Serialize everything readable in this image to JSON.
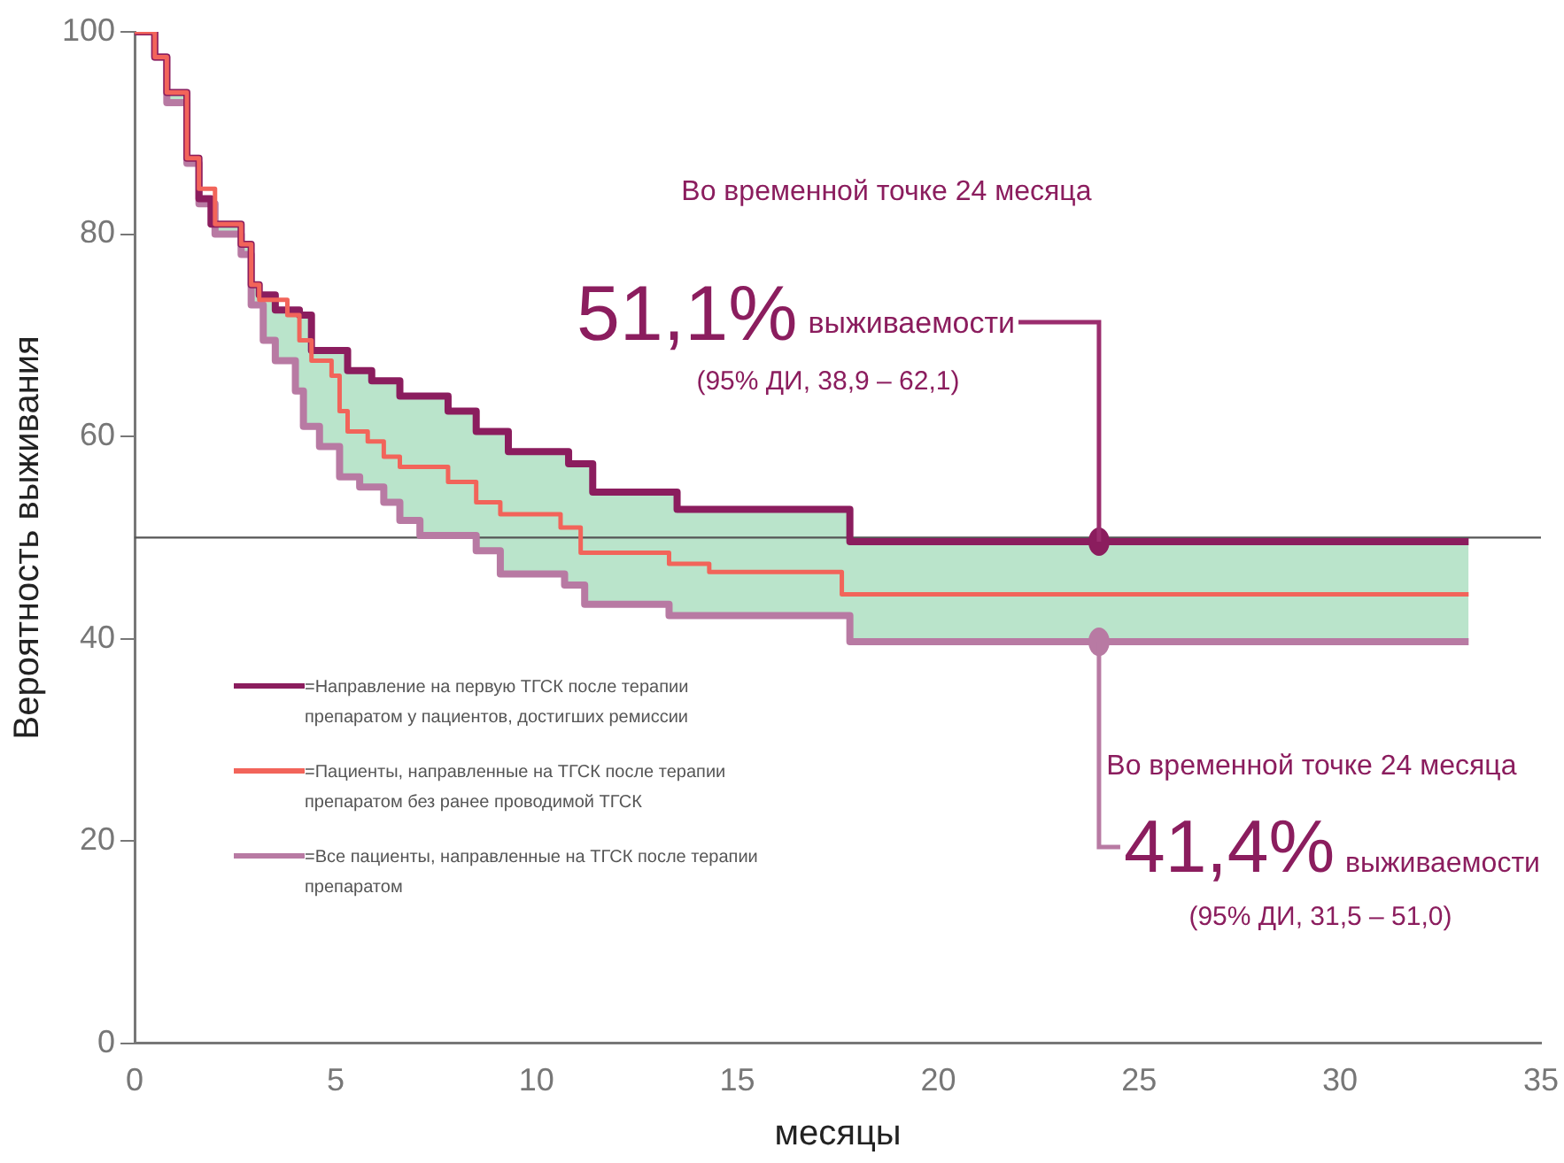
{
  "chart_data": {
    "type": "step",
    "xlabel": "месяцы",
    "ylabel": "Вероятность выживания",
    "xlim": [
      0,
      35
    ],
    "xticks": [
      0,
      5,
      10,
      15,
      20,
      25,
      30,
      35
    ],
    "ylim": [
      0,
      100
    ],
    "yticks": [
      0,
      20,
      40,
      60,
      80,
      100
    ],
    "grid": false,
    "legend": "bottom left",
    "ref_lines": [
      {
        "axis": "y",
        "value": 50,
        "color": "#555555"
      }
    ],
    "series": [
      {
        "name": "=Направление на первую ТГСК после терапии препаратом у пациентов, достигших ремиссии",
        "color": "#8b1d5e",
        "x": [
          0,
          0.5,
          0.8,
          1.3,
          1.6,
          1.9,
          2.65,
          2.9,
          3.1,
          3.5,
          4.1,
          4.4,
          5.3,
          5.9,
          6.6,
          7.8,
          8.5,
          9.3,
          10.8,
          11.4,
          13.5,
          17.8,
          33.2
        ],
        "values": [
          100,
          97.5,
          94,
          87.5,
          83.5,
          81,
          79,
          75,
          74,
          72.5,
          72,
          68.5,
          66.5,
          65.5,
          64,
          62.5,
          60.5,
          58.5,
          57.3,
          54.5,
          52.8,
          49.6,
          49.6
        ]
      },
      {
        "name": "=Пациенты, направленные на ТГСК после терапии препаратом без ранее проводимой ТГСК",
        "color": "#f2645a",
        "x": [
          0,
          0.5,
          0.8,
          1.3,
          1.6,
          2.0,
          2.65,
          2.9,
          3.1,
          3.8,
          4.1,
          4.4,
          4.9,
          5.1,
          5.3,
          5.8,
          6.2,
          6.6,
          7.8,
          8.5,
          9.1,
          10.6,
          11.1,
          13.3,
          14.3,
          17.6,
          33.2
        ],
        "values": [
          100,
          97.5,
          94,
          87.5,
          84.5,
          81,
          79,
          75,
          73.5,
          72,
          69.5,
          67.5,
          66,
          62.5,
          60.5,
          59.5,
          58,
          57,
          55.5,
          53.5,
          52.3,
          51,
          48.5,
          47.4,
          46.6,
          44.4,
          44.4
        ]
      },
      {
        "name": "=Все пациенты, направленные на ТГСК после терапии препаратом",
        "color": "#b87aa3",
        "x": [
          0,
          0.5,
          0.8,
          1.3,
          1.6,
          2.0,
          2.65,
          2.9,
          3.2,
          3.5,
          4.0,
          4.2,
          4.6,
          5.1,
          5.6,
          6.2,
          6.6,
          7.1,
          8.5,
          9.1,
          10.7,
          11.2,
          13.3,
          17.8,
          33.2
        ],
        "values": [
          100,
          97.5,
          93,
          87,
          83,
          80,
          78,
          73,
          69.5,
          67.5,
          64.5,
          61,
          59,
          56,
          55,
          53.5,
          51.7,
          50.2,
          48.7,
          46.4,
          45.3,
          43.4,
          42.3,
          39.7,
          39.7
        ]
      }
    ],
    "annotations": [
      "Во временной точке 24 месяца",
      "51,1%",
      {
        "text": "выживаемости",
        "x": 24,
        "y": 49.6
      },
      "(95% ДИ, 38,9 – 62,1)",
      "Во временной точке 24 месяца",
      {
        "text": "41,4%",
        "x": 24,
        "y": 39.7
      },
      "выживаемости",
      "(95% ДИ, 31,5 – 51,0)"
    ]
  }
}
